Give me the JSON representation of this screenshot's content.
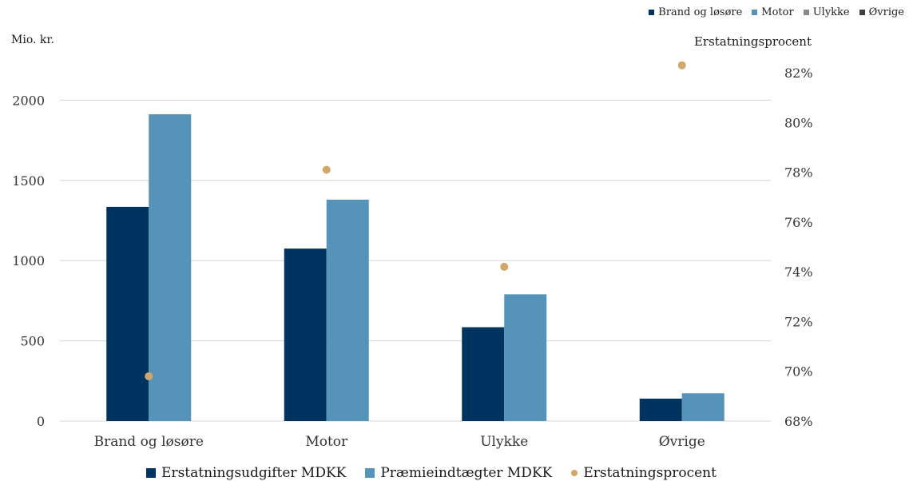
{
  "chart_data": {
    "type": "bar",
    "categories": [
      "Brand og løsøre",
      "Motor",
      "Ulykke",
      "Øvrige"
    ],
    "series": [
      {
        "name": "Erstatningsudgifter MDKK",
        "type": "bar",
        "axis": "left",
        "color": "#003460",
        "values": [
          1335,
          1075,
          585,
          140
        ]
      },
      {
        "name": "Præmieindtægter MDKK",
        "type": "bar",
        "axis": "left",
        "color": "#5593b8",
        "values": [
          1912,
          1380,
          790,
          173
        ]
      },
      {
        "name": "Erstatningsprocent",
        "type": "scatter",
        "axis": "right",
        "color": "#d2a86a",
        "values": [
          69.8,
          78.1,
          74.2,
          82.3
        ]
      }
    ],
    "y_left": {
      "label": "Mio. kr.",
      "ylim": [
        0,
        2450
      ],
      "ticks": [
        0,
        500,
        1000,
        1500,
        2000
      ],
      "tick_labels": [
        "0",
        "500",
        "1000",
        "1500",
        "2000"
      ]
    },
    "y_right": {
      "label": "Erstatningsprocent",
      "ylim": [
        68,
        83.8
      ],
      "ticks": [
        68,
        70,
        72,
        74,
        76,
        78,
        80,
        82
      ],
      "tick_labels": [
        "68%",
        "70%",
        "72%",
        "74%",
        "76%",
        "78%",
        "80%",
        "82%"
      ]
    },
    "grid": true,
    "legend_top": [
      {
        "label": "Brand og løsøre",
        "color": "#003460"
      },
      {
        "label": "Motor",
        "color": "#5593b8"
      },
      {
        "label": "Ulykke",
        "color": "#8a8a8a"
      },
      {
        "label": "Øvrige",
        "color": "#404040"
      }
    ],
    "legend_placement": "bottom"
  }
}
